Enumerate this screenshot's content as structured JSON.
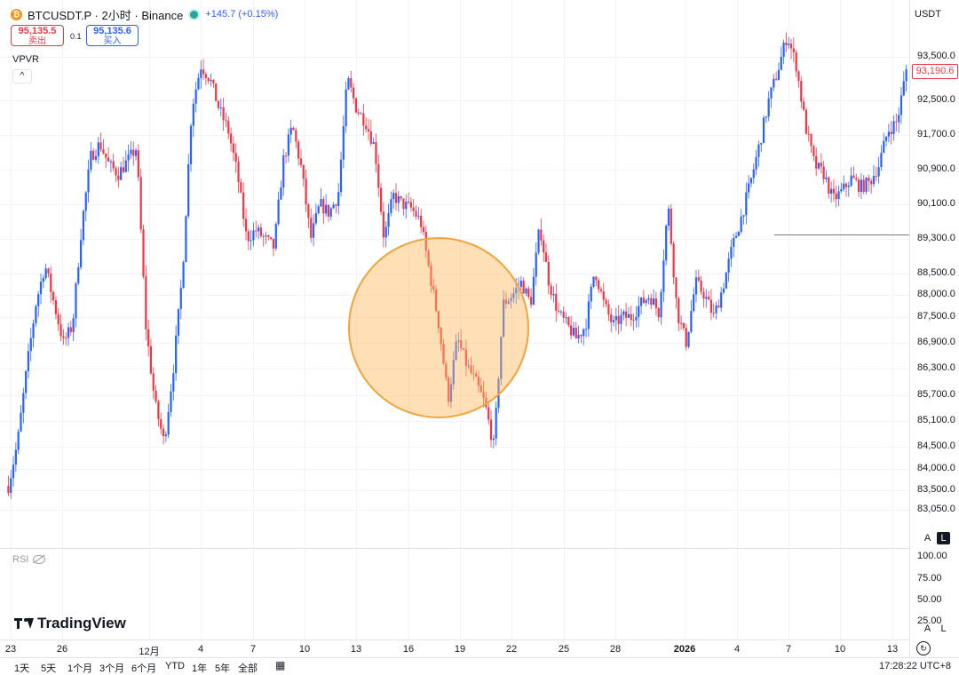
{
  "header": {
    "symbol": "BTCUSDT.P",
    "interval": "2小时",
    "exchange": "Binance",
    "title": "BTCUSDT.P · 2小时 · Binance",
    "change": "+145.7 (+0.15%)",
    "coin_icon": "bitcoin-icon",
    "status_color": "#26a69a"
  },
  "trade": {
    "sell_price": "95,135.5",
    "sell_label": "卖出",
    "spread": "0.1",
    "buy_price": "95,135.6",
    "buy_label": "买入"
  },
  "indicators": {
    "vpvr_label": "VPVR",
    "collapse_icon": "^",
    "rsi_label": "RSI"
  },
  "price_axis": {
    "currency": "USDT",
    "current_price": "93,190.6",
    "labels": [
      "93,500.0",
      "92,500.0",
      "91,700.0",
      "90,900.0",
      "90,100.0",
      "89,300.0",
      "88,500.0",
      "88,000.0",
      "87,500.0",
      "86,900.0",
      "86,300.0",
      "85,700.0",
      "85,100.0",
      "84,500.0",
      "84,000.0",
      "83,500.0",
      "83,050.0"
    ],
    "rsi_labels": [
      "100.00",
      "75.00",
      "50.00",
      "25.00"
    ],
    "auto_label": "A",
    "log_label": "L"
  },
  "time_axis": {
    "labels": [
      "23",
      "26",
      "12月",
      "4",
      "7",
      "10",
      "13",
      "16",
      "19",
      "22",
      "25",
      "28",
      "2026",
      "4",
      "7",
      "10",
      "13"
    ],
    "timestamp": "17:28:22 UTC+8"
  },
  "bottom_bar": {
    "ranges": [
      "1天",
      "5天",
      "1个月",
      "3个月",
      "6个月",
      "YTD",
      "1年",
      "5年",
      "全部"
    ]
  },
  "branding": {
    "logo_text": "TradingView"
  },
  "annotations": {
    "circle_color": "#f2a33c",
    "horizontal_line_price": "89,300.0"
  },
  "colors": {
    "up": "#2962ff",
    "down": "#f23645",
    "accent": "#2962ff"
  },
  "chart_data": {
    "type": "candlestick",
    "title": "BTCUSDT.P · 2小时 · Binance",
    "ylim": [
      82800,
      94200
    ],
    "x_ticks": [
      "23",
      "26",
      "12月",
      "4",
      "7",
      "10",
      "13",
      "16",
      "19",
      "22",
      "25",
      "28",
      "2026",
      "4",
      "7",
      "10",
      "13"
    ],
    "approx_close_path": [
      83600,
      84600,
      86300,
      87800,
      88700,
      87800,
      86900,
      87300,
      89600,
      91200,
      91500,
      91000,
      90800,
      91100,
      91400,
      87300,
      85500,
      84600,
      86300,
      88500,
      92300,
      93300,
      93000,
      92300,
      91800,
      90800,
      89300,
      89500,
      89300,
      89100,
      91100,
      91900,
      90900,
      89300,
      90100,
      89900,
      90300,
      93000,
      92300,
      92000,
      91400,
      89300,
      90300,
      90100,
      90000,
      89700,
      88500,
      87300,
      85600,
      87000,
      86400,
      86000,
      85500,
      84500,
      87800,
      88000,
      88300,
      87800,
      89600,
      88300,
      87600,
      87300,
      87000,
      87300,
      88600,
      87800,
      87300,
      87500,
      87500,
      87800,
      88000,
      87600,
      90100,
      87600,
      86900,
      88300,
      88000,
      87500,
      88200,
      89100,
      89800,
      90600,
      91500,
      92500,
      93200,
      94000,
      93300,
      91900,
      91000,
      90800,
      90200,
      90400,
      90700,
      90500,
      90600,
      91000,
      91800,
      92000,
      93200
    ]
  }
}
